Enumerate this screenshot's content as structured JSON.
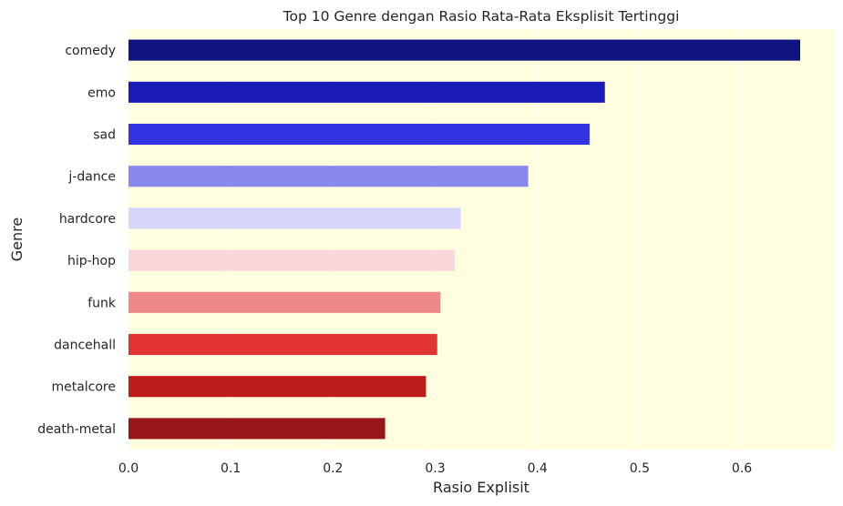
{
  "chart_data": {
    "type": "bar",
    "orientation": "horizontal",
    "title": "Top 10 Genre dengan Rasio Rata-Rata Eksplisit Tertinggi",
    "xlabel": "Rasio Explisit",
    "ylabel": "Genre",
    "categories": [
      "comedy",
      "emo",
      "sad",
      "j-dance",
      "hardcore",
      "hip-hop",
      "funk",
      "dancehall",
      "metalcore",
      "death-metal"
    ],
    "values": [
      0.657,
      0.466,
      0.451,
      0.391,
      0.325,
      0.319,
      0.305,
      0.302,
      0.291,
      0.251
    ],
    "colors": [
      "#10137f",
      "#1a1ab7",
      "#3333e2",
      "#8888ef",
      "#d6d6fb",
      "#f8d6d9",
      "#ef8888",
      "#e33434",
      "#be1b1b",
      "#98161a"
    ],
    "xlim": [
      0,
      0.69
    ],
    "xticks": [
      0.0,
      0.1,
      0.2,
      0.3,
      0.4,
      0.5,
      0.6
    ],
    "xtick_labels": [
      "0.0",
      "0.1",
      "0.2",
      "0.3",
      "0.4",
      "0.5",
      "0.6"
    ],
    "plot_background": "#ffffe0",
    "grid": true,
    "legend": "none"
  }
}
